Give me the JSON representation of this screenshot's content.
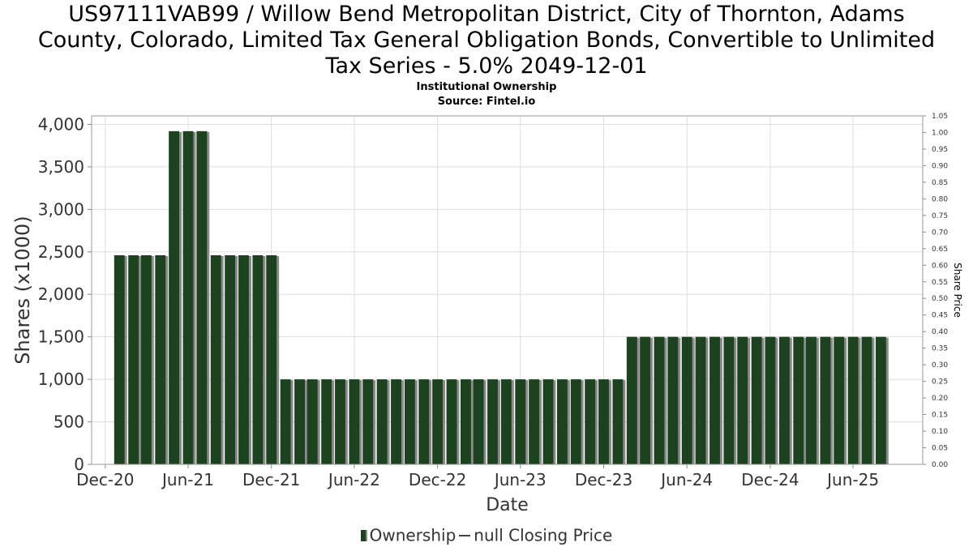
{
  "title_lines": [
    "US97111VAB99 / Willow Bend Metropolitan District, City of Thornton, Adams",
    "County, Colorado, Limited Tax General Obligation Bonds, Convertible to Unlimited",
    "Tax Series - 5.0% 2049-12-01"
  ],
  "subtitle": "Institutional Ownership",
  "source": "Source: Fintel.io",
  "legend": {
    "ownership": "Ownership",
    "price": "null Closing Price"
  },
  "colors": {
    "bar": "#1c4220",
    "bar_shadow": "#8a8a8a",
    "grid": "#dddddd"
  },
  "chart_data": {
    "type": "bar",
    "xlabel": "Date",
    "ylabel": "Shares (x1000)",
    "y2label": "Share Price",
    "ylim": [
      0,
      4100
    ],
    "yticks": [
      0,
      500,
      1000,
      1500,
      2000,
      2500,
      3000,
      3500,
      4000
    ],
    "ytick_labels": [
      "0",
      "500",
      "1,000",
      "1,500",
      "2,000",
      "2,500",
      "3,000",
      "3,500",
      "4,000"
    ],
    "y2lim": [
      0,
      1.05
    ],
    "y2ticks": [
      "0.00",
      "0.05",
      "0.10",
      "0.15",
      "0.20",
      "0.25",
      "0.30",
      "0.35",
      "0.40",
      "0.45",
      "0.50",
      "0.55",
      "0.60",
      "0.65",
      "0.70",
      "0.75",
      "0.80",
      "0.85",
      "0.90",
      "0.95",
      "1.00",
      "1.05"
    ],
    "x_start": "2020-11-01",
    "x_end": "2025-11-01",
    "xticks": [
      {
        "date": "2020-12-01",
        "label": "Dec-20"
      },
      {
        "date": "2021-06-01",
        "label": "Jun-21"
      },
      {
        "date": "2021-12-01",
        "label": "Dec-21"
      },
      {
        "date": "2022-06-01",
        "label": "Jun-22"
      },
      {
        "date": "2022-12-01",
        "label": "Dec-22"
      },
      {
        "date": "2023-06-01",
        "label": "Jun-23"
      },
      {
        "date": "2023-12-01",
        "label": "Dec-23"
      },
      {
        "date": "2024-06-01",
        "label": "Jun-24"
      },
      {
        "date": "2024-12-01",
        "label": "Dec-24"
      },
      {
        "date": "2025-06-01",
        "label": "Jun-25"
      }
    ],
    "series": [
      {
        "name": "Ownership",
        "dates": [
          "2021-01-01",
          "2021-02-01",
          "2021-03-01",
          "2021-04-01",
          "2021-05-01",
          "2021-06-01",
          "2021-07-01",
          "2021-08-01",
          "2021-09-01",
          "2021-10-01",
          "2021-11-01",
          "2021-12-01",
          "2022-01-01",
          "2022-02-01",
          "2022-03-01",
          "2022-04-01",
          "2022-05-01",
          "2022-06-01",
          "2022-07-01",
          "2022-08-01",
          "2022-09-01",
          "2022-10-01",
          "2022-11-01",
          "2022-12-01",
          "2023-01-01",
          "2023-02-01",
          "2023-03-01",
          "2023-04-01",
          "2023-05-01",
          "2023-06-01",
          "2023-07-01",
          "2023-08-01",
          "2023-09-01",
          "2023-10-01",
          "2023-11-01",
          "2023-12-01",
          "2024-01-01",
          "2024-02-01",
          "2024-03-01",
          "2024-04-01",
          "2024-05-01",
          "2024-06-01",
          "2024-07-01",
          "2024-08-01",
          "2024-09-01",
          "2024-10-01",
          "2024-11-01",
          "2024-12-01",
          "2025-01-01",
          "2025-02-01",
          "2025-03-01",
          "2025-04-01",
          "2025-05-01",
          "2025-06-01",
          "2025-07-01",
          "2025-08-01"
        ],
        "values": [
          2460,
          2460,
          2460,
          2460,
          3920,
          3920,
          3920,
          2460,
          2460,
          2460,
          2460,
          2460,
          1000,
          1000,
          1000,
          1000,
          1000,
          1000,
          1000,
          1000,
          1000,
          1000,
          1000,
          1000,
          1000,
          1000,
          1000,
          1000,
          1000,
          1000,
          1000,
          1000,
          1000,
          1000,
          1000,
          1000,
          1000,
          1500,
          1500,
          1500,
          1500,
          1500,
          1500,
          1500,
          1500,
          1500,
          1500,
          1500,
          1500,
          1500,
          1500,
          1500,
          1500,
          1500,
          1500,
          1500
        ]
      }
    ],
    "grid": true,
    "legend_position": "bottom-center"
  }
}
